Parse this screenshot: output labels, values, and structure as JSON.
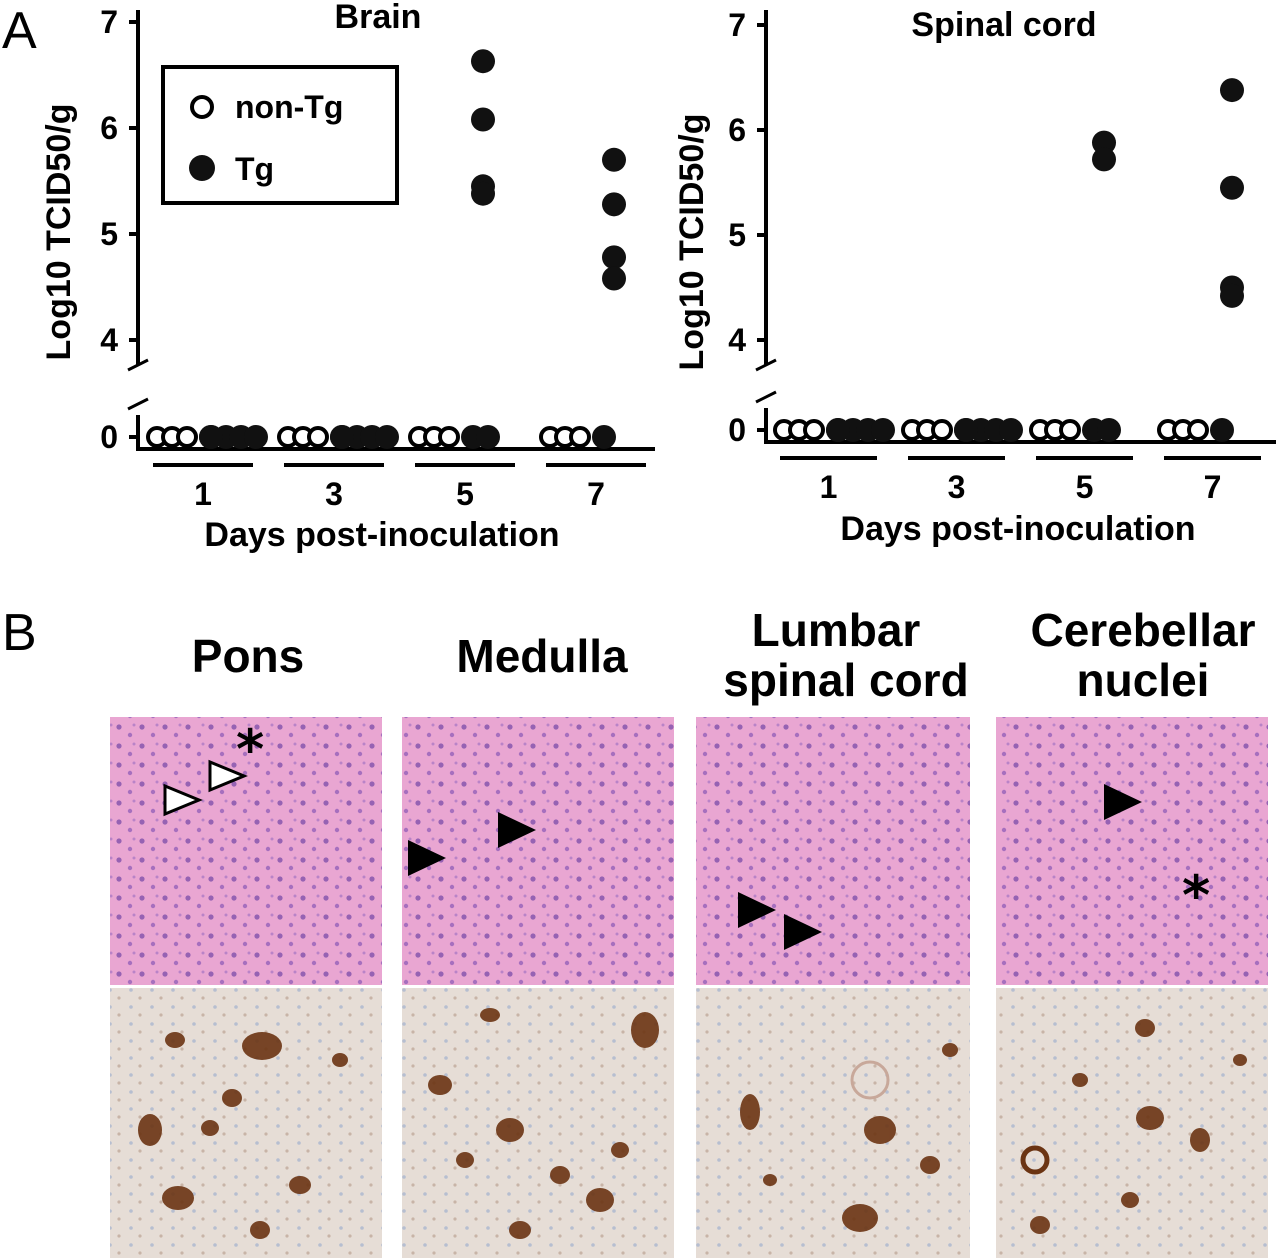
{
  "panel_a": {
    "letter": "A"
  },
  "panel_b": {
    "letter": "B",
    "regions": [
      {
        "lines": [
          "Pons"
        ]
      },
      {
        "lines": [
          "Medulla"
        ]
      },
      {
        "lines": [
          "Lumbar",
          "spinal cord"
        ]
      },
      {
        "lines": [
          "Cerebellar",
          "nuclei"
        ]
      }
    ],
    "he_color": "#e9a6d2",
    "ihc_color": "#e6ddd6",
    "asterisk": "*"
  },
  "chart_data": [
    {
      "type": "scatter",
      "title": "Brain",
      "ylabel": "Log10 TCID50/g",
      "ylabel_sub": "50",
      "xlabel": "Days post-inoculation",
      "categories": [
        "1",
        "3",
        "5",
        "7"
      ],
      "yticks": [
        0,
        4,
        5,
        6,
        7
      ],
      "ylim": [
        0,
        7
      ],
      "axis_break": true,
      "legend": {
        "position": "top-left",
        "entries": [
          "non-Tg",
          "Tg"
        ]
      },
      "series": [
        {
          "name": "non-Tg",
          "marker": "open-circle",
          "values": [
            [
              0,
              0,
              0
            ],
            [
              0,
              0,
              0
            ],
            [
              0,
              0,
              0
            ],
            [
              0,
              0,
              0
            ]
          ]
        },
        {
          "name": "Tg",
          "marker": "filled-circle",
          "values": [
            [
              0,
              0,
              0,
              0,
              0
            ],
            [
              0,
              0,
              0,
              0,
              0
            ],
            [
              6.63,
              6.08,
              5.45,
              5.38,
              0,
              0
            ],
            [
              5.7,
              5.28,
              4.78,
              4.58,
              0
            ]
          ]
        }
      ]
    },
    {
      "type": "scatter",
      "title": "Spinal cord",
      "ylabel": "Log10 TCID50/g",
      "ylabel_sub": "50",
      "xlabel": "Days post-inoculation",
      "categories": [
        "1",
        "3",
        "5",
        "7"
      ],
      "yticks": [
        0,
        4,
        5,
        6,
        7
      ],
      "ylim": [
        0,
        7
      ],
      "axis_break": true,
      "series": [
        {
          "name": "non-Tg",
          "marker": "open-circle",
          "values": [
            [
              0,
              0,
              0
            ],
            [
              0,
              0,
              0
            ],
            [
              0,
              0,
              0
            ],
            [
              0,
              0,
              0
            ]
          ]
        },
        {
          "name": "Tg",
          "marker": "filled-circle",
          "values": [
            [
              0,
              0,
              0,
              0,
              0
            ],
            [
              0,
              0,
              0,
              0,
              0
            ],
            [
              5.88,
              5.72,
              0,
              0
            ],
            [
              6.38,
              5.45,
              4.5,
              4.42,
              0
            ]
          ]
        }
      ]
    }
  ]
}
